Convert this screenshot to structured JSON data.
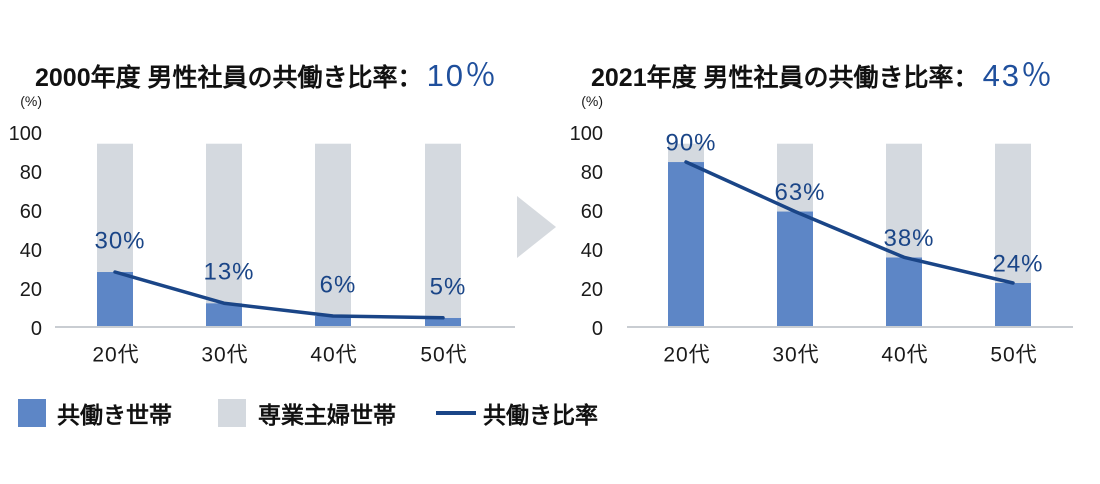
{
  "icons": {
    "between_charts": "triangle-right-icon"
  },
  "colors": {
    "title_value": "#1f4f9c",
    "axis_baseline": "#c9cdd2",
    "arrow": "#d6dadf",
    "text": "#1a1a1a"
  },
  "chart_data": [
    {
      "type": "bar",
      "stacked": true,
      "title": "2000年度 男性社員の共働き比率：",
      "title_value": "10％",
      "ylabel": "(%)",
      "ylim": [
        0,
        100
      ],
      "yticks": [
        0,
        20,
        40,
        60,
        80,
        100
      ],
      "categories": [
        "20代",
        "30代",
        "40代",
        "50代"
      ],
      "grid": false,
      "legend": "bottom-left",
      "series": [
        {
          "name": "共働き世帯",
          "type": "bar",
          "color": "#5d86c6",
          "values": [
            30,
            13,
            6,
            5
          ]
        },
        {
          "name": "専業主婦世帯",
          "type": "bar",
          "color": "#d4d9df",
          "values": [
            70,
            87,
            94,
            95
          ]
        },
        {
          "name": "共働き比率",
          "type": "line",
          "color": "#1a4587",
          "values": [
            30,
            13,
            6,
            5
          ],
          "labels": [
            "30%",
            "13%",
            "6%",
            "5%"
          ]
        }
      ]
    },
    {
      "type": "bar",
      "stacked": true,
      "title": "2021年度 男性社員の共働き比率：",
      "title_value": "43％",
      "ylabel": "(%)",
      "ylim": [
        0,
        100
      ],
      "yticks": [
        0,
        20,
        40,
        60,
        80,
        100
      ],
      "categories": [
        "20代",
        "30代",
        "40代",
        "50代"
      ],
      "grid": false,
      "legend": "bottom-left",
      "series": [
        {
          "name": "共働き世帯",
          "type": "bar",
          "color": "#5d86c6",
          "values": [
            90,
            63,
            38,
            24
          ]
        },
        {
          "name": "専業主婦世帯",
          "type": "bar",
          "color": "#d4d9df",
          "values": [
            10,
            37,
            62,
            76
          ]
        },
        {
          "name": "共働き比率",
          "type": "line",
          "color": "#1a4587",
          "values": [
            90,
            63,
            38,
            24
          ],
          "labels": [
            "90%",
            "63%",
            "38%",
            "24%"
          ]
        }
      ]
    }
  ]
}
